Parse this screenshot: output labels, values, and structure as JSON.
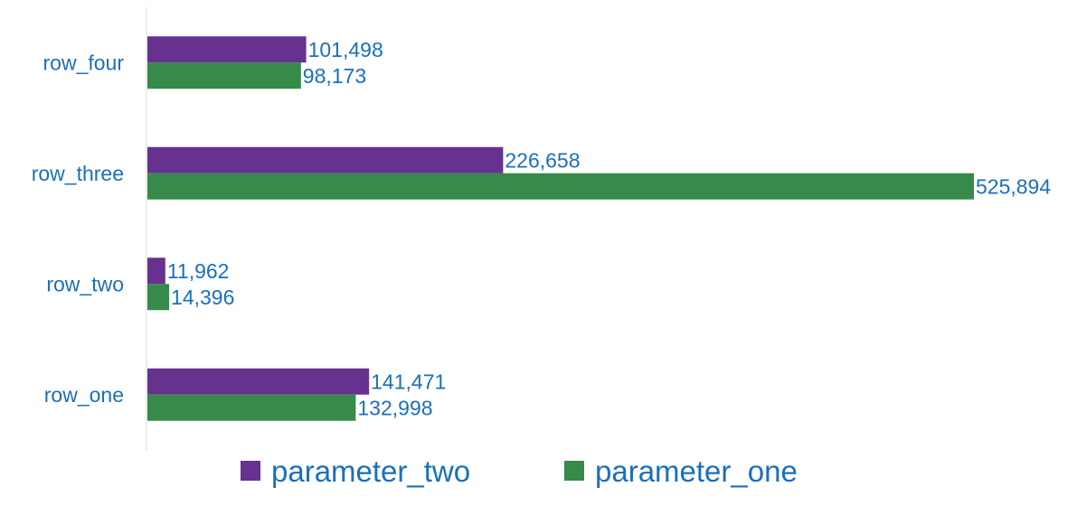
{
  "chart_data": {
    "type": "bar",
    "orientation": "horizontal",
    "categories": [
      "row_one",
      "row_two",
      "row_three",
      "row_four"
    ],
    "series": [
      {
        "name": "parameter_two",
        "color": "#66318f",
        "values": [
          141471,
          11962,
          226658,
          101498
        ],
        "labels": [
          "141,471",
          "11,962",
          "226,658",
          "101,498"
        ]
      },
      {
        "name": "parameter_one",
        "color": "#378a4a",
        "values": [
          132998,
          14396,
          525894,
          98173
        ],
        "labels": [
          "132,998",
          "14,396",
          "525,894",
          "98,173"
        ]
      }
    ],
    "xlim": [
      0,
      525894
    ],
    "grid": false,
    "legend_position": "bottom",
    "text_color": "#1a6fbd",
    "axis_color": "#d9d9d9"
  }
}
